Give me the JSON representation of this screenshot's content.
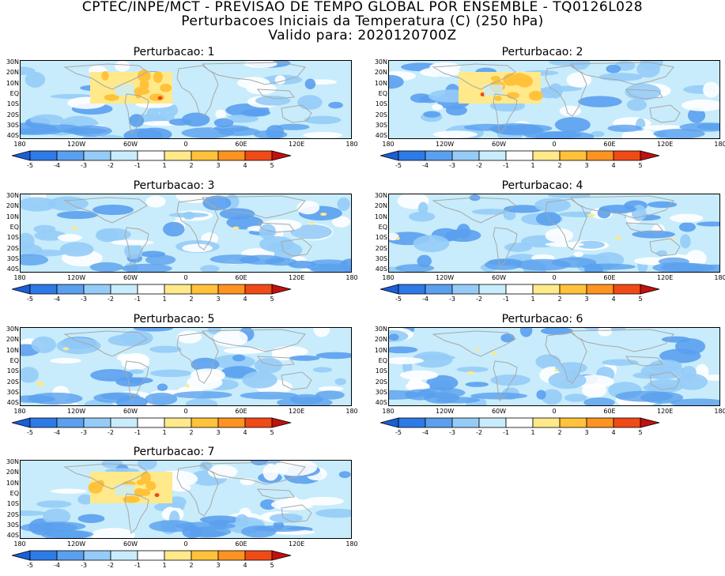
{
  "header": {
    "line1": "CPTEC/INPE/MCT - PREVISAO DE TEMPO GLOBAL POR ENSEMBLE - TQ0126L028",
    "line2": "Perturbacoes Iniciais da Temperatura (C) (250 hPa)",
    "line3": "Valido para: 2020120700Z"
  },
  "panels": [
    {
      "title": "Perturbacao: 1",
      "warm_box": true
    },
    {
      "title": "Perturbacao: 2",
      "warm_box": true
    },
    {
      "title": "Perturbacao: 3",
      "warm_box": false
    },
    {
      "title": "Perturbacao: 4",
      "warm_box": false
    },
    {
      "title": "Perturbacao: 5",
      "warm_box": false
    },
    {
      "title": "Perturbacao: 6",
      "warm_box": false
    },
    {
      "title": "Perturbacao: 7",
      "warm_box": true
    }
  ],
  "lat_labels": [
    "30N",
    "20N",
    "10N",
    "EQ",
    "10S",
    "20S",
    "30S",
    "40S"
  ],
  "lon_labels": [
    "180",
    "120W",
    "60W",
    "0",
    "60E",
    "120E",
    "180"
  ],
  "colorbar": {
    "labels": [
      "-5",
      "-4",
      "-3",
      "-2",
      "-1",
      "1",
      "2",
      "3",
      "4",
      "5"
    ],
    "colors": [
      "#1a5fd6",
      "#2e7ae6",
      "#5aa0ee",
      "#95ccf7",
      "#c8ecfb",
      "#ffffff",
      "#ffe98a",
      "#ffc23a",
      "#ff9322",
      "#f04a16",
      "#c0120e"
    ]
  },
  "map_colors": {
    "land_outline": "#a8a8a8",
    "light_blue": "#c8ecfb",
    "mid_blue": "#95ccf7",
    "deep_blue": "#5aa0ee",
    "yellow": "#ffe98a",
    "orange": "#ffc23a",
    "red": "#f04a16"
  }
}
